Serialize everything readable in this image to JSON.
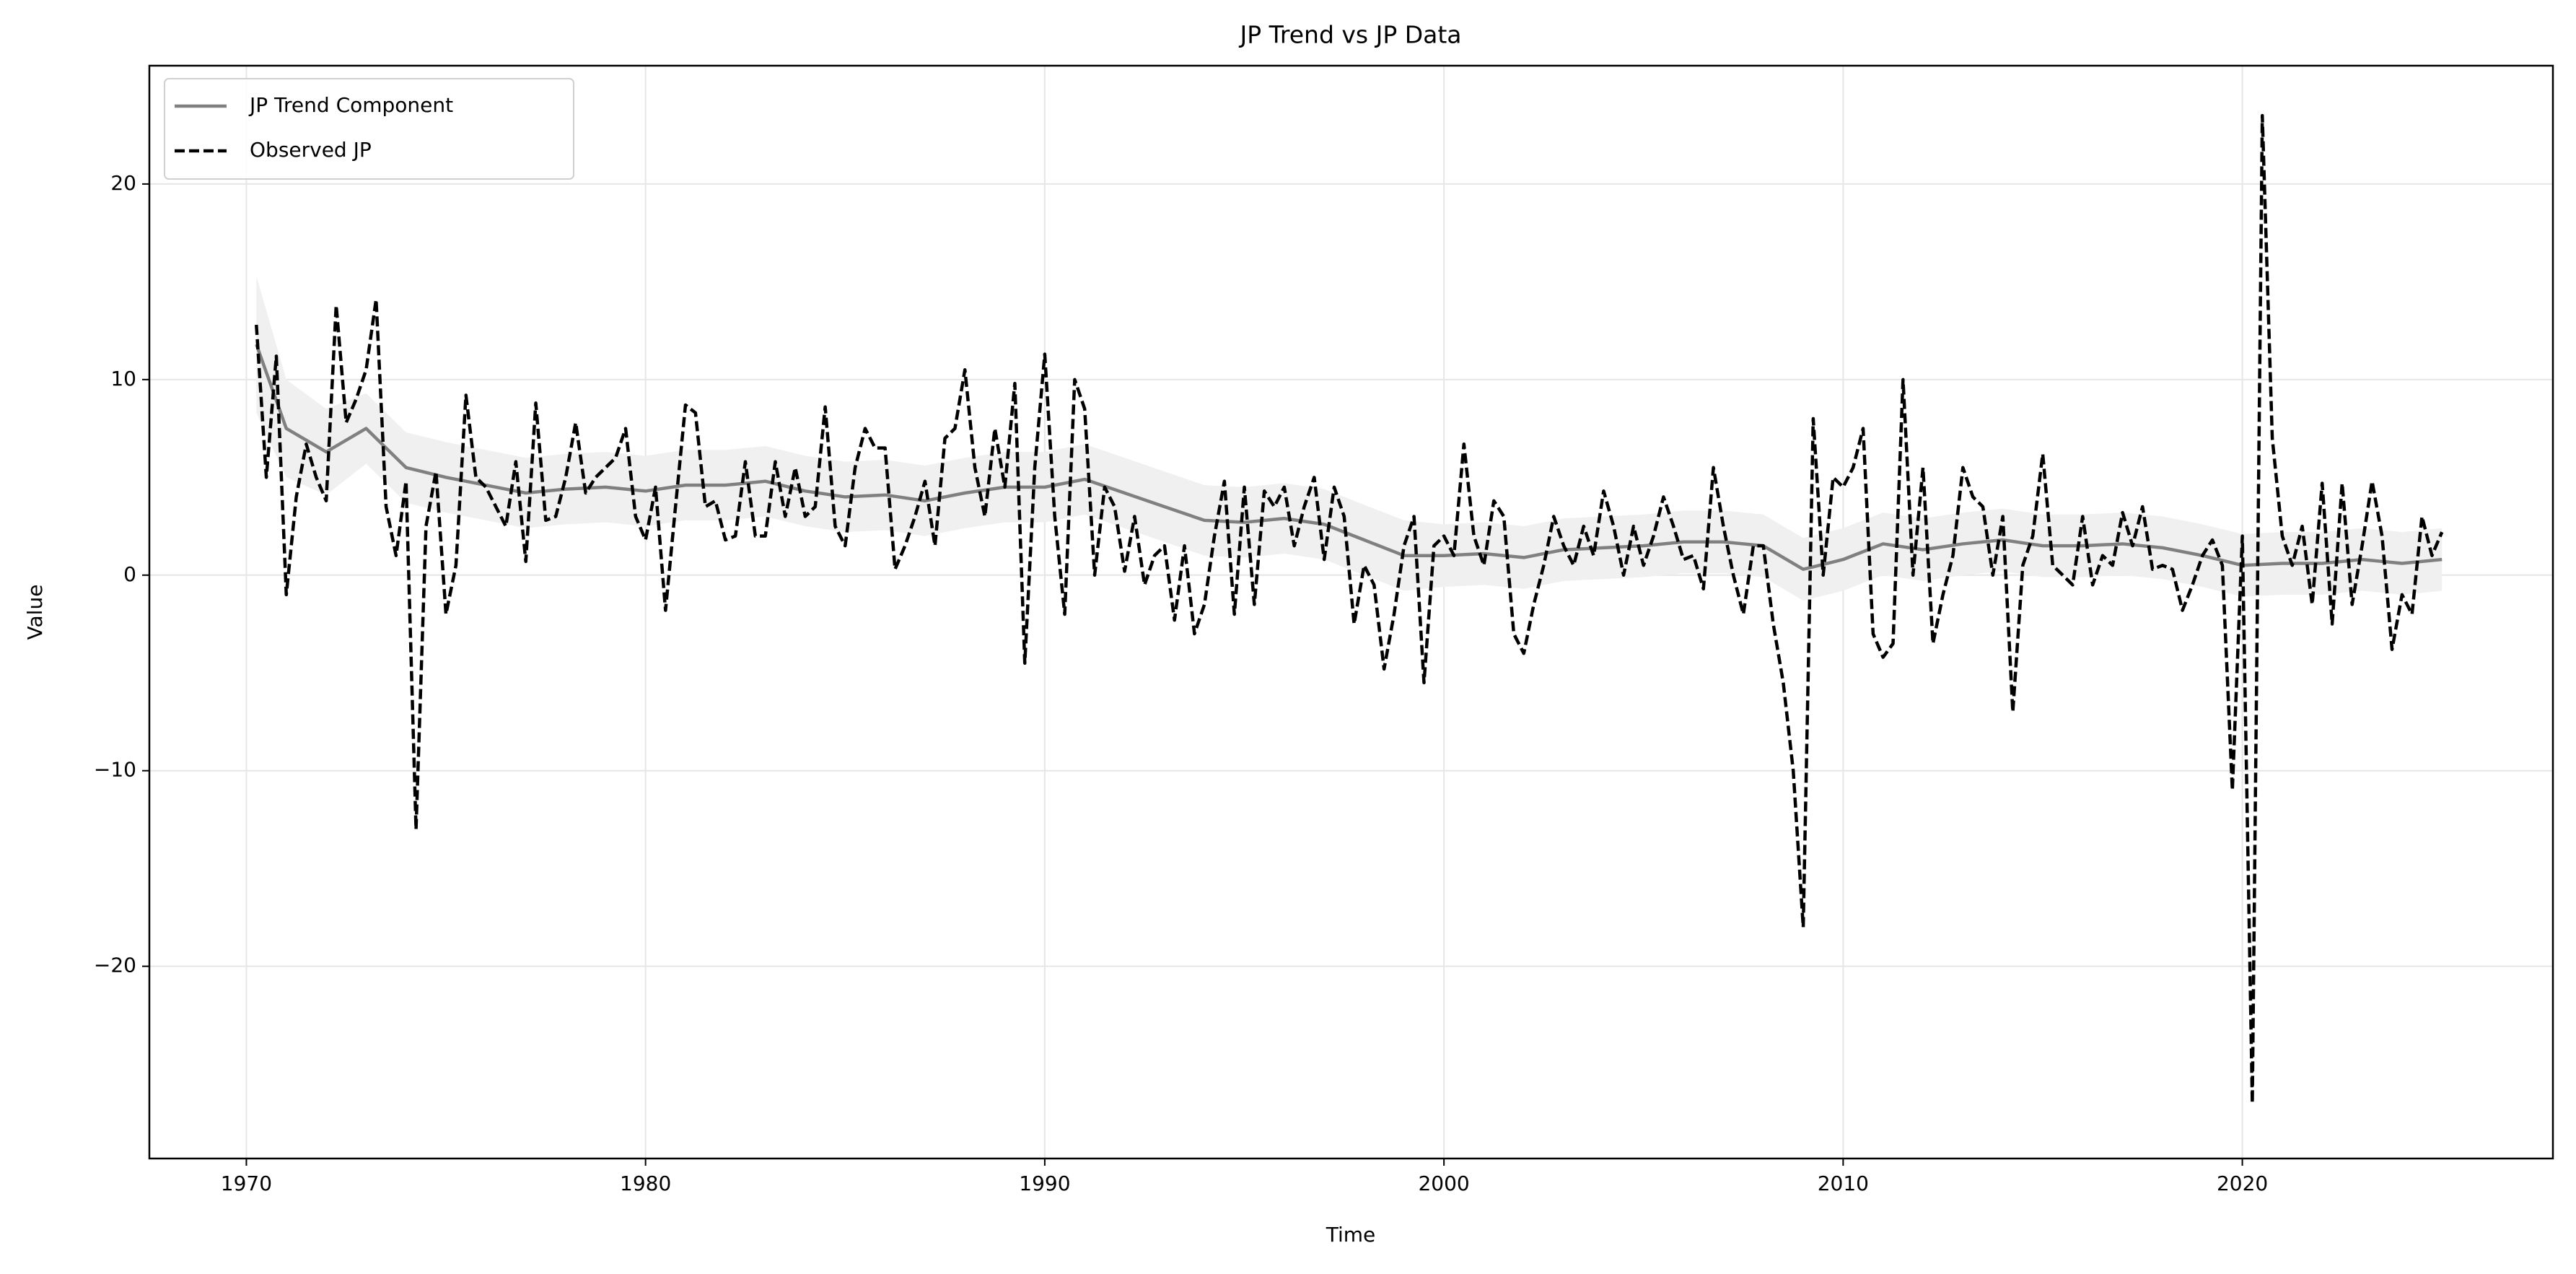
{
  "chart_data": {
    "type": "line",
    "title": "JP Trend vs JP Data",
    "xlabel": "Time",
    "ylabel": "Value",
    "xlim": [
      1967.57,
      2027.78
    ],
    "xticks": [
      1970,
      1980,
      1990,
      2000,
      2010,
      2020
    ],
    "ylim": [
      -29.83,
      26.05
    ],
    "yticks": [
      {
        "value": -20,
        "label": "−20"
      },
      {
        "value": -10,
        "label": "−10"
      },
      0,
      10,
      20
    ],
    "grid": true,
    "legend": "upper left",
    "band": {
      "color": "#f0f0f0",
      "x": [
        1970.25,
        1971,
        1972,
        1973,
        1974,
        1975,
        1976,
        1977,
        1978,
        1979,
        1980,
        1981,
        1982,
        1983,
        1984,
        1985,
        1986,
        1987,
        1988,
        1989,
        1990,
        1991,
        1992,
        1993,
        1994,
        1995,
        1996,
        1997,
        1998,
        1999,
        2000,
        2001,
        2002,
        2003,
        2004,
        2005,
        2006,
        2007,
        2008,
        2009,
        2010,
        2011,
        2012,
        2013,
        2014,
        2015,
        2016,
        2017,
        2018,
        2019,
        2020,
        2021,
        2022,
        2023,
        2024,
        2025
      ],
      "upper": [
        15.3,
        10.0,
        8.5,
        9.3,
        7.3,
        6.8,
        6.4,
        6.0,
        6.2,
        6.3,
        6.1,
        6.4,
        6.4,
        6.6,
        6.1,
        5.8,
        5.9,
        5.6,
        6.0,
        6.3,
        6.3,
        6.7,
        6.0,
        5.3,
        4.6,
        4.5,
        4.7,
        4.4,
        3.6,
        2.8,
        2.6,
        2.7,
        2.5,
        2.9,
        3.0,
        3.1,
        3.3,
        3.3,
        3.1,
        1.9,
        2.4,
        3.2,
        2.9,
        3.2,
        3.4,
        3.1,
        3.1,
        3.2,
        3.0,
        2.6,
        2.1,
        2.2,
        2.2,
        2.4,
        2.2,
        2.4
      ],
      "lower": [
        8.3,
        5.0,
        4.1,
        5.7,
        3.7,
        3.2,
        2.8,
        2.4,
        2.6,
        2.7,
        2.5,
        2.8,
        2.8,
        3.0,
        2.5,
        2.2,
        2.3,
        2.0,
        2.4,
        2.7,
        2.7,
        3.1,
        2.4,
        1.7,
        1.0,
        0.9,
        1.1,
        0.8,
        0.0,
        -0.8,
        -0.6,
        -0.5,
        -0.7,
        -0.3,
        -0.2,
        -0.1,
        0.1,
        0.1,
        -0.1,
        -1.3,
        -0.8,
        0.0,
        -0.3,
        0.0,
        0.2,
        -0.1,
        -0.1,
        0.0,
        -0.2,
        -0.6,
        -1.1,
        -1.0,
        -1.0,
        -0.8,
        -1.0,
        -0.8
      ]
    },
    "series": [
      {
        "name": "JP Trend Component",
        "color": "#808080",
        "dash": false,
        "x": [
          1970.25,
          1971,
          1972,
          1973,
          1974,
          1975,
          1976,
          1977,
          1978,
          1979,
          1980,
          1981,
          1982,
          1983,
          1984,
          1985,
          1986,
          1987,
          1988,
          1989,
          1990,
          1991,
          1992,
          1993,
          1994,
          1995,
          1996,
          1997,
          1998,
          1999,
          2000,
          2001,
          2002,
          2003,
          2004,
          2005,
          2006,
          2007,
          2008,
          2009,
          2010,
          2011,
          2012,
          2013,
          2014,
          2015,
          2016,
          2017,
          2018,
          2019,
          2020,
          2021,
          2022,
          2023,
          2024,
          2025
        ],
        "values": [
          11.8,
          7.5,
          6.3,
          7.5,
          5.5,
          5.0,
          4.6,
          4.2,
          4.4,
          4.5,
          4.3,
          4.6,
          4.6,
          4.8,
          4.3,
          4.0,
          4.1,
          3.8,
          4.2,
          4.5,
          4.5,
          4.9,
          4.2,
          3.5,
          2.8,
          2.7,
          2.9,
          2.6,
          1.8,
          1.0,
          1.0,
          1.1,
          0.9,
          1.3,
          1.4,
          1.5,
          1.7,
          1.7,
          1.5,
          0.3,
          0.8,
          1.6,
          1.3,
          1.6,
          1.8,
          1.5,
          1.5,
          1.6,
          1.4,
          1.0,
          0.5,
          0.6,
          0.6,
          0.8,
          0.6,
          0.8
        ]
      },
      {
        "name": "Observed JP",
        "color": "#000000",
        "dash": true,
        "x": [
          1970.25,
          1970.5,
          1970.75,
          1971,
          1971.25,
          1971.5,
          1971.75,
          1972,
          1972.25,
          1972.5,
          1972.75,
          1973,
          1973.25,
          1973.5,
          1973.75,
          1974,
          1974.25,
          1974.5,
          1974.75,
          1975,
          1975.25,
          1975.5,
          1975.75,
          1976,
          1976.25,
          1976.5,
          1976.75,
          1977,
          1977.25,
          1977.5,
          1977.75,
          1978,
          1978.25,
          1978.5,
          1978.75,
          1979,
          1979.25,
          1979.5,
          1979.75,
          1980,
          1980.25,
          1980.5,
          1980.75,
          1981,
          1981.25,
          1981.5,
          1981.75,
          1982,
          1982.25,
          1982.5,
          1982.75,
          1983,
          1983.25,
          1983.5,
          1983.75,
          1984,
          1984.25,
          1984.5,
          1984.75,
          1985,
          1985.25,
          1985.5,
          1985.75,
          1986,
          1986.25,
          1986.5,
          1986.75,
          1987,
          1987.25,
          1987.5,
          1987.75,
          1988,
          1988.25,
          1988.5,
          1988.75,
          1989,
          1989.25,
          1989.5,
          1989.75,
          1990,
          1990.25,
          1990.5,
          1990.75,
          1991,
          1991.25,
          1991.5,
          1991.75,
          1992,
          1992.25,
          1992.5,
          1992.75,
          1993,
          1993.25,
          1993.5,
          1993.75,
          1994,
          1994.25,
          1994.5,
          1994.75,
          1995,
          1995.25,
          1995.5,
          1995.75,
          1996,
          1996.25,
          1996.5,
          1996.75,
          1997,
          1997.25,
          1997.5,
          1997.75,
          1998,
          1998.25,
          1998.5,
          1998.75,
          1999,
          1999.25,
          1999.5,
          1999.75,
          2000,
          2000.25,
          2000.5,
          2000.75,
          2001,
          2001.25,
          2001.5,
          2001.75,
          2002,
          2002.25,
          2002.5,
          2002.75,
          2003,
          2003.25,
          2003.5,
          2003.75,
          2004,
          2004.25,
          2004.5,
          2004.75,
          2005,
          2005.25,
          2005.5,
          2005.75,
          2006,
          2006.25,
          2006.5,
          2006.75,
          2007,
          2007.25,
          2007.5,
          2007.75,
          2008,
          2008.25,
          2008.5,
          2008.75,
          2009,
          2009.25,
          2009.5,
          2009.75,
          2010,
          2010.25,
          2010.5,
          2010.75,
          2011,
          2011.25,
          2011.5,
          2011.75,
          2012,
          2012.25,
          2012.5,
          2012.75,
          2013,
          2013.25,
          2013.5,
          2013.75,
          2014,
          2014.25,
          2014.5,
          2014.75,
          2015,
          2015.25,
          2015.5,
          2015.75,
          2016,
          2016.25,
          2016.5,
          2016.75,
          2017,
          2017.25,
          2017.5,
          2017.75,
          2018,
          2018.25,
          2018.5,
          2018.75,
          2019,
          2019.25,
          2019.5,
          2019.75,
          2020,
          2020.25,
          2020.5,
          2020.75,
          2021,
          2021.25,
          2021.5,
          2021.75,
          2022,
          2022.25,
          2022.5,
          2022.75,
          2023,
          2023.25,
          2023.5,
          2023.75,
          2024,
          2024.25,
          2024.5,
          2024.75,
          2025
        ],
        "values": [
          12.8,
          5.0,
          11.2,
          -1.0,
          4.0,
          6.7,
          5.0,
          3.8,
          13.8,
          7.8,
          9.0,
          10.5,
          14.1,
          3.5,
          1.0,
          4.8,
          -13.0,
          2.5,
          5.3,
          -2.0,
          0.5,
          9.2,
          5.0,
          4.5,
          3.5,
          2.5,
          5.8,
          0.7,
          8.8,
          2.8,
          3.0,
          5.0,
          7.8,
          4.2,
          5.0,
          5.5,
          6.0,
          7.5,
          3.0,
          1.8,
          4.5,
          -1.8,
          3.5,
          8.7,
          8.3,
          3.5,
          3.8,
          1.8,
          2.0,
          5.8,
          2.0,
          2.0,
          5.8,
          3.0,
          5.5,
          3.0,
          3.5,
          8.6,
          2.5,
          1.5,
          5.5,
          7.5,
          6.5,
          6.5,
          0.3,
          1.5,
          3.0,
          4.8,
          1.5,
          7.0,
          7.5,
          10.5,
          5.5,
          3.0,
          7.5,
          4.5,
          9.8,
          -4.5,
          5.5,
          11.3,
          3.0,
          -2.0,
          10.0,
          8.5,
          0.0,
          4.5,
          3.5,
          0.2,
          3.0,
          -0.5,
          1.0,
          1.5,
          -2.3,
          1.5,
          -3.0,
          -1.5,
          2.0,
          4.8,
          -2.0,
          4.5,
          -1.5,
          4.3,
          3.5,
          4.5,
          1.5,
          3.5,
          5.0,
          0.8,
          4.5,
          3.0,
          -2.5,
          0.5,
          -0.5,
          -4.8,
          -2.0,
          1.5,
          3.0,
          -5.5,
          1.5,
          2.0,
          1.0,
          6.7,
          2.0,
          0.5,
          3.8,
          3.0,
          -3.0,
          -4.0,
          -1.5,
          0.5,
          3.0,
          1.5,
          0.5,
          2.5,
          1.0,
          4.3,
          2.5,
          0.0,
          2.5,
          0.5,
          2.0,
          4.0,
          2.5,
          0.8,
          1.0,
          -0.7,
          5.5,
          2.5,
          0.0,
          -2.0,
          1.5,
          1.5,
          -2.5,
          -5.5,
          -10.0,
          -18.0,
          8.0,
          0.0,
          5.0,
          4.5,
          5.5,
          7.5,
          -3.0,
          -4.2,
          -3.5,
          10.0,
          0.0,
          5.5,
          -3.5,
          -1.0,
          1.0,
          5.5,
          4.0,
          3.5,
          0.0,
          3.0,
          -7.0,
          0.5,
          2.0,
          6.2,
          0.5,
          0.0,
          -0.5,
          3.0,
          -0.5,
          1.0,
          0.5,
          3.2,
          1.5,
          3.5,
          0.3,
          0.5,
          0.3,
          -1.8,
          -0.5,
          1.0,
          1.8,
          0.5,
          -11.0,
          2.0,
          -27.0,
          23.5,
          7.0,
          2.0,
          0.5,
          2.5,
          -1.5,
          4.7,
          -2.5,
          4.7,
          -1.5,
          1.5,
          4.8,
          2.0,
          -3.8,
          -1.0,
          -2.0,
          3.0,
          1.0,
          2.2
        ]
      }
    ]
  }
}
